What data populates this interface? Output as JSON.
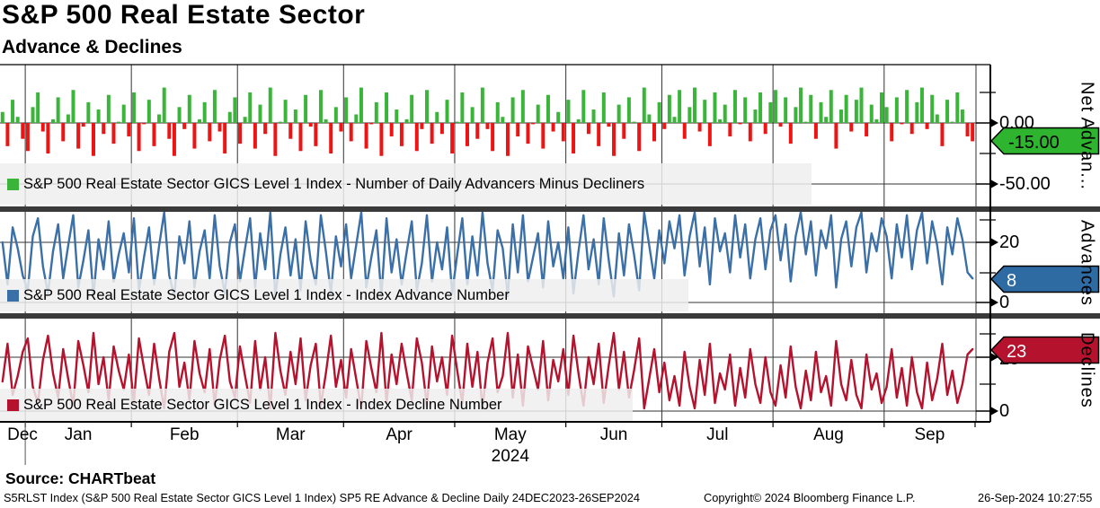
{
  "header": {
    "title": "S&P 500 Real Estate Sector",
    "subtitle": "Advance & Declines"
  },
  "x_axis": {
    "months": [
      {
        "label": "Dec",
        "start": 0
      },
      {
        "label": "Jan",
        "start": 5
      },
      {
        "label": "Feb",
        "start": 26
      },
      {
        "label": "Mar",
        "start": 47
      },
      {
        "label": "Apr",
        "start": 68
      },
      {
        "label": "May",
        "start": 90
      },
      {
        "label": "Jun",
        "start": 112
      },
      {
        "label": "Jul",
        "start": 131
      },
      {
        "label": "Aug",
        "start": 153
      },
      {
        "label": "Sep",
        "start": 175
      }
    ],
    "total_points": 193,
    "year_label": "2024"
  },
  "panels": [
    {
      "id": "net_advances",
      "side_title": "Net Advan...",
      "legend": "S&P 500 Real Estate Sector GICS Level 1 Index - Number of Daily Advancers Minus Decliners",
      "badge": {
        "text": "-15.00",
        "color": "#2eb42e",
        "text_color": "#000000"
      },
      "ticks": [
        {
          "label": "0.00",
          "value": 0
        },
        {
          "label": "-50.00",
          "value": -50
        }
      ]
    },
    {
      "id": "advances",
      "side_title": "Advances",
      "legend": "S&P 500 Real Estate Sector GICS Level 1 Index - Index Advance Number",
      "badge": {
        "text": "8",
        "color": "#2f6ba3",
        "text_color": "#ffffff"
      },
      "ticks": [
        {
          "label": "20",
          "value": 20
        },
        {
          "label": "0",
          "value": 0
        }
      ]
    },
    {
      "id": "declines",
      "side_title": "Declines",
      "legend": "S&P 500 Real Estate Sector GICS Level 1 Index - Index Decline Number",
      "badge": {
        "text": "23",
        "color": "#b5122e",
        "text_color": "#ffffff"
      },
      "ticks": [
        {
          "label": "20",
          "value": 20
        },
        {
          "label": "0",
          "value": 0
        }
      ]
    }
  ],
  "chart_data": [
    {
      "type": "bar",
      "title": "Number of Daily Advancers Minus Decliners",
      "ylim": [
        -62,
        48
      ],
      "yticks": [
        0,
        -50
      ],
      "last_value": -15,
      "color": "#3ab53a",
      "negative_color": "#ee1414",
      "values": [
        9,
        -19,
        19,
        5,
        -13,
        -23,
        13,
        25,
        -7,
        -25,
        3,
        21,
        -15,
        7,
        27,
        -21,
        -3,
        17,
        -27,
        11,
        -9,
        23,
        -17,
        1,
        15,
        -11,
        25,
        -23,
        -1,
        19,
        -19,
        7,
        29,
        -13,
        -27,
        13,
        -5,
        23,
        -21,
        3,
        17,
        -15,
        27,
        -7,
        -25,
        9,
        21,
        -17,
        5,
        25,
        -21,
        15,
        -9,
        29,
        -27,
        1,
        19,
        -13,
        11,
        -23,
        23,
        -3,
        -19,
        27,
        3,
        -25,
        13,
        -7,
        21,
        -15,
        7,
        29,
        -21,
        -1,
        17,
        -27,
        25,
        -11,
        11,
        -19,
        3,
        23,
        -23,
        -5,
        27,
        -17,
        9,
        -9,
        19,
        -25,
        1,
        25,
        -19,
        13,
        -13,
        29,
        -5,
        -23,
        17,
        5,
        -27,
        21,
        -11,
        27,
        -17,
        -1,
        15,
        -21,
        23,
        -7,
        9,
        -15,
        19,
        -25,
        3,
        27,
        -9,
        11,
        -19,
        25,
        -3,
        -27,
        15,
        -13,
        21,
        1,
        -23,
        29,
        7,
        -15,
        17,
        -5,
        23,
        5,
        27,
        -13,
        13,
        29,
        -7,
        19,
        -19,
        25,
        3,
        15,
        -11,
        27,
        -1,
        21,
        -15,
        11,
        25,
        -9,
        17,
        27,
        -3,
        21,
        -17,
        13,
        29,
        1,
        23,
        -13,
        17,
        5,
        27,
        -21,
        11,
        23,
        -7,
        19,
        29,
        -11,
        15,
        3,
        25,
        13,
        -15,
        21,
        -1,
        27,
        -9,
        17,
        29,
        -5,
        23,
        7,
        -19,
        19,
        1,
        25,
        11,
        -11,
        -15
      ]
    },
    {
      "type": "line",
      "title": "Index Advance Number",
      "ylim": [
        0,
        30
      ],
      "yticks": [
        20,
        0
      ],
      "last_value": 8,
      "color": "#3a6fa8",
      "values": [
        20,
        6,
        25,
        18,
        9,
        4,
        22,
        28,
        12,
        3,
        17,
        26,
        8,
        19,
        29,
        5,
        14,
        24,
        2,
        21,
        11,
        27,
        7,
        16,
        23,
        10,
        28,
        4,
        15,
        25,
        6,
        19,
        30,
        9,
        2,
        22,
        13,
        27,
        5,
        17,
        24,
        8,
        29,
        12,
        3,
        20,
        26,
        7,
        18,
        28,
        5,
        23,
        11,
        30,
        2,
        16,
        25,
        9,
        21,
        4,
        27,
        14,
        6,
        29,
        17,
        3,
        22,
        12,
        26,
        8,
        19,
        30,
        5,
        15,
        24,
        2,
        28,
        10,
        21,
        6,
        17,
        27,
        4,
        13,
        29,
        7,
        20,
        11,
        25,
        3,
        16,
        28,
        6,
        22,
        9,
        30,
        13,
        4,
        24,
        18,
        2,
        26,
        10,
        29,
        7,
        15,
        23,
        5,
        27,
        12,
        20,
        8,
        25,
        3,
        17,
        29,
        11,
        21,
        6,
        28,
        14,
        2,
        23,
        9,
        26,
        16,
        4,
        30,
        19,
        8,
        24,
        13,
        27,
        18,
        29,
        9,
        22,
        30,
        12,
        25,
        6,
        28,
        17,
        23,
        10,
        29,
        15,
        26,
        8,
        21,
        28,
        11,
        24,
        29,
        14,
        26,
        7,
        22,
        30,
        16,
        27,
        9,
        24,
        18,
        29,
        5,
        21,
        27,
        12,
        25,
        30,
        10,
        23,
        17,
        28,
        22,
        8,
        26,
        15,
        29,
        11,
        24,
        30,
        13,
        27,
        19,
        6,
        25,
        16,
        28,
        21,
        10,
        8
      ]
    },
    {
      "type": "line",
      "title": "Index Decline Number",
      "ylim": [
        0,
        33
      ],
      "yticks": [
        20,
        0
      ],
      "last_value": 23,
      "color": "#b5122e",
      "values": [
        11,
        25,
        6,
        13,
        22,
        27,
        9,
        3,
        19,
        28,
        14,
        5,
        23,
        12,
        2,
        26,
        17,
        7,
        29,
        10,
        20,
        4,
        24,
        15,
        8,
        21,
        3,
        27,
        16,
        6,
        25,
        12,
        1,
        22,
        29,
        9,
        18,
        4,
        26,
        14,
        7,
        23,
        2,
        19,
        28,
        11,
        5,
        24,
        13,
        3,
        26,
        8,
        20,
        1,
        29,
        15,
        6,
        22,
        10,
        27,
        4,
        17,
        25,
        2,
        14,
        28,
        9,
        19,
        5,
        23,
        12,
        1,
        26,
        16,
        7,
        29,
        3,
        21,
        10,
        25,
        14,
        4,
        27,
        18,
        2,
        24,
        11,
        20,
        6,
        28,
        15,
        3,
        25,
        9,
        22,
        1,
        18,
        27,
        7,
        13,
        29,
        5,
        21,
        2,
        24,
        16,
        8,
        26,
        4,
        19,
        11,
        23,
        6,
        28,
        14,
        2,
        20,
        10,
        25,
        3,
        17,
        29,
        8,
        22,
        5,
        15,
        27,
        1,
        12,
        23,
        7,
        18,
        4,
        13,
        2,
        22,
        9,
        1,
        19,
        6,
        25,
        3,
        14,
        8,
        21,
        2,
        16,
        5,
        23,
        10,
        3,
        20,
        7,
        2,
        17,
        5,
        24,
        9,
        1,
        15,
        4,
        22,
        7,
        13,
        2,
        26,
        10,
        4,
        19,
        6,
        1,
        21,
        8,
        14,
        3,
        9,
        23,
        5,
        16,
        2,
        20,
        7,
        1,
        18,
        4,
        12,
        25,
        6,
        15,
        3,
        10,
        21,
        23
      ]
    }
  ],
  "colors": {
    "bar_green": "#3ab53a",
    "bar_red": "#ee1414",
    "line_blue": "#3a6fa8",
    "line_crimson": "#b5122e",
    "separator": "#3a3a3a",
    "grid": "#333333",
    "legend_bg": "#eeeeee"
  },
  "footer": {
    "source": "Source: CHARTbeat",
    "meta": "S5RLST Index (S&P 500 Real Estate Sector GICS Level 1 Index) SP5 RE Advance & Decline  Daily 24DEC2023-26SEP2024",
    "copyright": "Copyright© 2024 Bloomberg Finance L.P.",
    "timestamp": "26-Sep-2024 10:27:55"
  }
}
